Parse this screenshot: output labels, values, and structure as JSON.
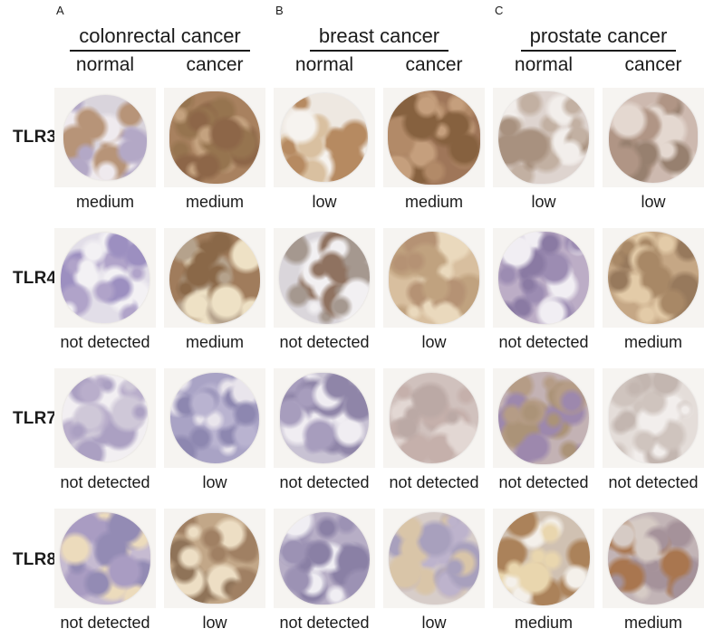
{
  "figure": {
    "text_color": "#1b1b1b",
    "tile_bg": "#f6f4f1",
    "row_labels": [
      "TLR3",
      "TLR4",
      "TLR7",
      "TLR8"
    ],
    "panels": [
      {
        "letter": "A",
        "title": "colonrectal cancer",
        "columns": [
          "normal",
          "cancer"
        ],
        "rows": [
          {
            "tlr": "TLR3",
            "cells": [
              {
                "level": "medium",
                "size": 92,
                "base": "#d9d4dc",
                "spots": [
                  "#b3a8c6",
                  "#b79478",
                  "#efeaee"
                ]
              },
              {
                "level": "medium",
                "size": 100,
                "base": "#a8815f",
                "spots": [
                  "#8d6648",
                  "#c4a27f",
                  "#96744f"
                ]
              }
            ]
          },
          {
            "tlr": "TLR4",
            "cells": [
              {
                "level": "not detected",
                "size": 98,
                "base": "#e2dee8",
                "spots": [
                  "#b0a3c9",
                  "#9c8fc0",
                  "#f3f1f4"
                ]
              },
              {
                "level": "medium",
                "size": 100,
                "base": "#a07c5c",
                "spots": [
                  "#8a6848",
                  "#eee1c5",
                  "#b5a28c"
                ]
              }
            ]
          },
          {
            "tlr": "TLR7",
            "cells": [
              {
                "level": "not detected",
                "size": 94,
                "base": "#f2eff2",
                "spots": [
                  "#aba0c2",
                  "#cfc8d8",
                  "#b9aecb"
                ]
              },
              {
                "level": "low",
                "size": 98,
                "base": "#a9a3c5",
                "spots": [
                  "#8d87b0",
                  "#e9e5ec",
                  "#b9b3d0"
                ]
              }
            ]
          },
          {
            "tlr": "TLR8",
            "cells": [
              {
                "level": "not detected",
                "size": 100,
                "base": "#c6bbd1",
                "spots": [
                  "#a99cc2",
                  "#ecdbbc",
                  "#938bb4"
                ]
              },
              {
                "level": "low",
                "size": 98,
                "base": "#c2a788",
                "spots": [
                  "#a08063",
                  "#eddec4",
                  "#8f7358"
                ]
              }
            ]
          }
        ]
      },
      {
        "letter": "B",
        "title": "breast cancer",
        "columns": [
          "normal",
          "cancer"
        ],
        "rows": [
          {
            "tlr": "TLR3",
            "cells": [
              {
                "level": "low",
                "size": 96,
                "base": "#eee8e1",
                "spots": [
                  "#b68a61",
                  "#d9c0a0",
                  "#f6f3ef"
                ]
              },
              {
                "level": "medium",
                "size": 102,
                "base": "#9f7659",
                "spots": [
                  "#86613f",
                  "#c59f7d",
                  "#b28a68"
                ]
              }
            ]
          },
          {
            "tlr": "TLR4",
            "cells": [
              {
                "level": "not detected",
                "size": 100,
                "base": "#dad6db",
                "spots": [
                  "#a5988f",
                  "#8f7260",
                  "#f2f0f2"
                ]
              },
              {
                "level": "low",
                "size": 100,
                "base": "#d8bf9f",
                "spots": [
                  "#c0a27f",
                  "#ead9bd",
                  "#b59274"
                ]
              }
            ]
          },
          {
            "tlr": "TLR7",
            "cells": [
              {
                "level": "not detected",
                "size": 98,
                "base": "#c8c2d3",
                "spots": [
                  "#a79dbd",
                  "#f0edf2",
                  "#8f85a8"
                ]
              },
              {
                "level": "not detected",
                "size": 98,
                "base": "#d0c1bd",
                "spots": [
                  "#bba9a5",
                  "#e2d7d3",
                  "#c5b0ab"
                ]
              }
            ]
          },
          {
            "tlr": "TLR8",
            "cells": [
              {
                "level": "not detected",
                "size": 100,
                "base": "#b7aec6",
                "spots": [
                  "#9c92b4",
                  "#f0eef3",
                  "#8a80a5"
                ]
              },
              {
                "level": "low",
                "size": 100,
                "base": "#d7cdc9",
                "spots": [
                  "#a8a0bd",
                  "#d9c5a8",
                  "#bdb3cc"
                ]
              }
            ]
          }
        ]
      },
      {
        "letter": "C",
        "title": "prostate cancer",
        "columns": [
          "normal",
          "cancer"
        ],
        "rows": [
          {
            "tlr": "TLR3",
            "cells": [
              {
                "level": "low",
                "size": 100,
                "base": "#ded4cf",
                "spots": [
                  "#c2b0a2",
                  "#a8917f",
                  "#f2eeeb"
                ]
              },
              {
                "level": "low",
                "size": 98,
                "base": "#cdb9af",
                "spots": [
                  "#b09585",
                  "#97806f",
                  "#e4d8d0"
                ]
              }
            ]
          },
          {
            "tlr": "TLR4",
            "cells": [
              {
                "level": "not detected",
                "size": 100,
                "base": "#bcadc6",
                "spots": [
                  "#9c8cb2",
                  "#f1eef3",
                  "#8a7aa3"
                ]
              },
              {
                "level": "medium",
                "size": 100,
                "base": "#c5a785",
                "spots": [
                  "#a88866",
                  "#e3cba8",
                  "#97795c"
                ]
              }
            ]
          },
          {
            "tlr": "TLR7",
            "cells": [
              {
                "level": "not detected",
                "size": 100,
                "base": "#c3b2b4",
                "spots": [
                  "#b59c86",
                  "#9d88ad",
                  "#ab9378"
                ]
              },
              {
                "level": "not detected",
                "size": 98,
                "base": "#e4ddd9",
                "spots": [
                  "#cfc4be",
                  "#f2eeec",
                  "#c3b6b0"
                ]
              }
            ]
          },
          {
            "tlr": "TLR8",
            "cells": [
              {
                "level": "medium",
                "size": 102,
                "base": "#d0c1b2",
                "spots": [
                  "#ab825a",
                  "#e9d6ae",
                  "#f4f0ea"
                ]
              },
              {
                "level": "medium",
                "size": 100,
                "base": "#c2b4b6",
                "spots": [
                  "#a5929a",
                  "#a9764f",
                  "#d6cbc5"
                ]
              }
            ]
          }
        ]
      }
    ]
  }
}
